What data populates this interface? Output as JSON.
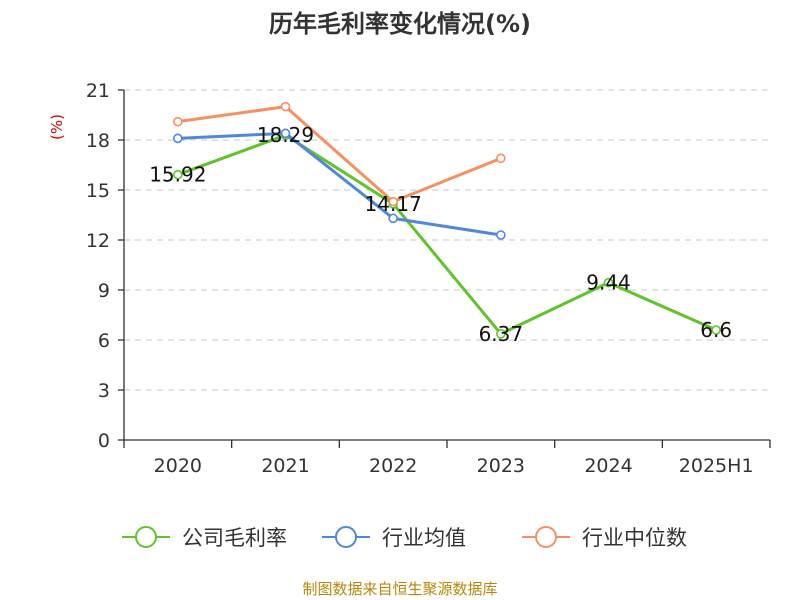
{
  "chart_data": {
    "type": "line",
    "title": "历年毛利率变化情况(%)",
    "ylabel": "(%)",
    "xlabel": "",
    "categories": [
      "2020",
      "2021",
      "2022",
      "2023",
      "2024",
      "2025H1"
    ],
    "ylim": [
      0,
      21
    ],
    "yticks": [
      0,
      3,
      6,
      9,
      12,
      15,
      18,
      21
    ],
    "grid": true,
    "legend_position": "bottom",
    "series": [
      {
        "name": "公司毛利率",
        "color": "#5ec42a",
        "values": [
          15.92,
          18.29,
          14.17,
          6.37,
          9.44,
          6.6
        ],
        "labels": [
          "15.92",
          "18.29",
          "14.17",
          "6.37",
          "9.44",
          "6.6"
        ]
      },
      {
        "name": "行业均值",
        "color": "#4f87dc",
        "values": [
          18.1,
          18.4,
          13.3,
          12.3,
          null,
          null
        ]
      },
      {
        "name": "行业中位数",
        "color": "#f59060",
        "values": [
          19.1,
          20.0,
          14.3,
          16.9,
          null,
          null
        ]
      }
    ]
  },
  "source": "制图数据来自恒生聚源数据库"
}
